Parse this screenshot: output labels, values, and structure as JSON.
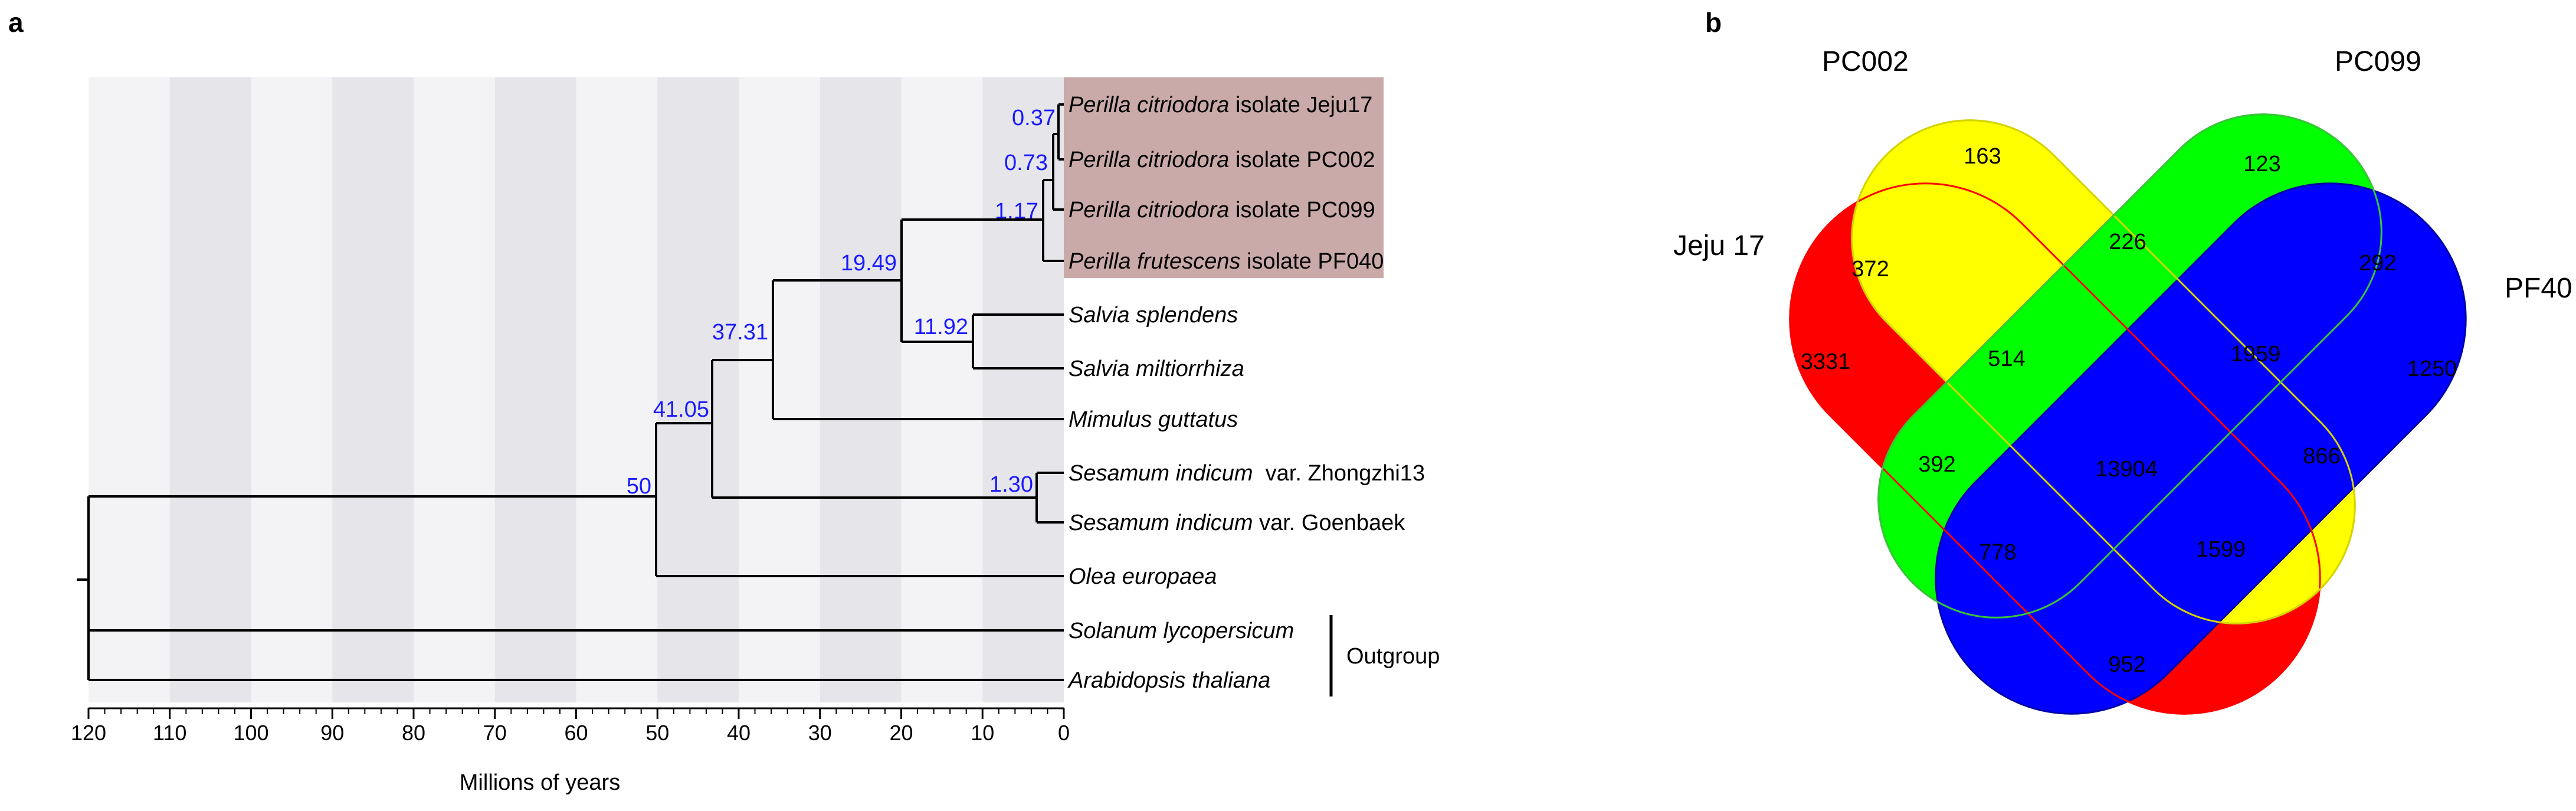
{
  "panel_a": {
    "label": "a",
    "axis": {
      "label": "Millions of  years",
      "ticks": [
        "120",
        "110",
        "100",
        "90",
        "80",
        "70",
        "60",
        "50",
        "40",
        "30",
        "20",
        "10",
        "0"
      ]
    },
    "taxa": [
      {
        "genus": "Perilla citriodora",
        "rest": " isolate Jeju17"
      },
      {
        "genus": "Perilla citriodora",
        "rest": " isolate PC002"
      },
      {
        "genus": "Perilla citriodora",
        "rest": " isolate PC099"
      },
      {
        "genus": "Perilla frutescens",
        "rest": " isolate PF040"
      },
      {
        "genus": "Salvia splendens",
        "rest": ""
      },
      {
        "genus": "Salvia miltiorrhiza",
        "rest": ""
      },
      {
        "genus": "Mimulus guttatus",
        "rest": ""
      },
      {
        "genus": "Sesamum indicum",
        "rest": "  var. Zhongzhi13"
      },
      {
        "genus": "Sesamum indicum",
        "rest": " var. Goenbaek"
      },
      {
        "genus": "Olea europaea",
        "rest": ""
      },
      {
        "genus": "Solanum lycopersicum",
        "rest": ""
      },
      {
        "genus": "Arabidopsis thaliana",
        "rest": ""
      }
    ],
    "node_ages": [
      "0.37",
      "0.73",
      "1.17",
      "19.49",
      "11.92",
      "37.31",
      "41.05",
      "50",
      "1.30"
    ],
    "outgroup_label": "Outgroup",
    "highlight_color": "#c9aaa8",
    "age_color": "#1a1aff"
  },
  "panel_b": {
    "label": "b",
    "sets": [
      "PC002",
      "PC099",
      "Jeju 17",
      "PF40"
    ],
    "set_colors": {
      "PC002": "#ffff00",
      "PC099": "#00ff00",
      "Jeju 17": "#ff0000",
      "PF40": "#0000ff"
    },
    "regions": [
      {
        "sets": [
          "PC002"
        ],
        "count": "163"
      },
      {
        "sets": [
          "PC099"
        ],
        "count": "123"
      },
      {
        "sets": [
          "Jeju 17",
          "PC002"
        ],
        "count": "372"
      },
      {
        "sets": [
          "PC002",
          "PC099"
        ],
        "count": "226"
      },
      {
        "sets": [
          "PC099",
          "PF40"
        ],
        "count": "292"
      },
      {
        "sets": [
          "Jeju 17"
        ],
        "count": "3331"
      },
      {
        "sets": [
          "Jeju 17",
          "PC002",
          "PC099"
        ],
        "count": "514"
      },
      {
        "sets": [
          "PC002",
          "PC099",
          "PF40"
        ],
        "count": "1959"
      },
      {
        "sets": [
          "PF40"
        ],
        "count": "1250"
      },
      {
        "sets": [
          "Jeju 17",
          "PC099"
        ],
        "count": "392"
      },
      {
        "sets": [
          "Jeju 17",
          "PC002",
          "PC099",
          "PF40"
        ],
        "count": "13904"
      },
      {
        "sets": [
          "PC002",
          "PF40"
        ],
        "count": "866"
      },
      {
        "sets": [
          "Jeju 17",
          "PC099",
          "PF40"
        ],
        "count": "778"
      },
      {
        "sets": [
          "Jeju 17",
          "PC002",
          "PF40"
        ],
        "count": "1599"
      },
      {
        "sets": [
          "Jeju 17",
          "PF40"
        ],
        "count": "952"
      }
    ]
  }
}
